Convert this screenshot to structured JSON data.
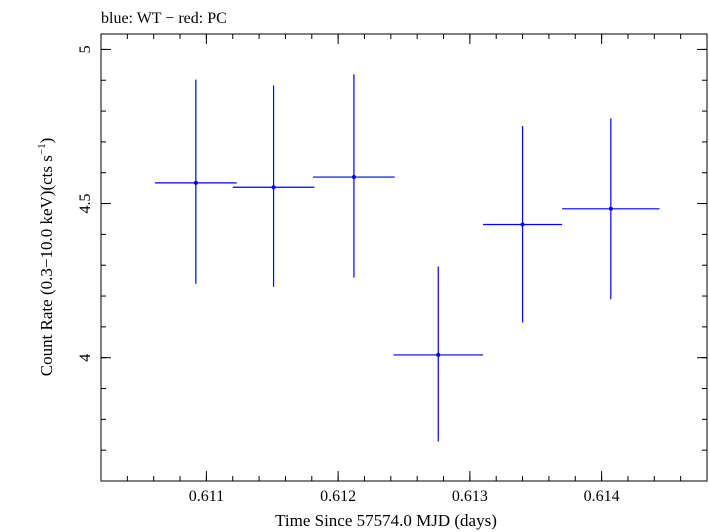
{
  "chart_data": {
    "type": "scatter",
    "title": "blue: WT − red: PC",
    "xlabel": "Time Since 57574.0 MJD (days)",
    "ylabel_main": "Count Rate (0.3−10.0 keV)(cts s",
    "ylabel_sup": "−1",
    "ylabel_close": ")",
    "xlim": [
      0.6102,
      0.6148
    ],
    "ylim": [
      3.6,
      5.05
    ],
    "x_major_ticks": [
      {
        "value": 0.611,
        "label": "0.611"
      },
      {
        "value": 0.612,
        "label": "0.612"
      },
      {
        "value": 0.613,
        "label": "0.613"
      },
      {
        "value": 0.614,
        "label": "0.614"
      }
    ],
    "y_major_ticks": [
      {
        "value": 4.0,
        "label": "4"
      },
      {
        "value": 4.5,
        "label": "4.5"
      },
      {
        "value": 5.0,
        "label": "5"
      }
    ],
    "x_minor_step": 0.0002,
    "y_minor_step": 0.1,
    "series": [
      {
        "color": "#0000ee",
        "points": [
          {
            "x": 0.61092,
            "xerr_lo": 0.00031,
            "xerr_hi": 0.00031,
            "y": 4.567,
            "yerr_lo": 0.327,
            "yerr_hi": 0.335
          },
          {
            "x": 0.61151,
            "xerr_lo": 0.00031,
            "xerr_hi": 0.00031,
            "y": 4.553,
            "yerr_lo": 0.323,
            "yerr_hi": 0.33
          },
          {
            "x": 0.61212,
            "xerr_lo": 0.00031,
            "xerr_hi": 0.00031,
            "y": 4.586,
            "yerr_lo": 0.326,
            "yerr_hi": 0.333
          },
          {
            "x": 0.61276,
            "xerr_lo": 0.00034,
            "xerr_hi": 0.00034,
            "y": 4.009,
            "yerr_lo": 0.281,
            "yerr_hi": 0.287
          },
          {
            "x": 0.6134,
            "xerr_lo": 0.0003,
            "xerr_hi": 0.0003,
            "y": 4.432,
            "yerr_lo": 0.318,
            "yerr_hi": 0.319
          },
          {
            "x": 0.61407,
            "xerr_lo": 0.00037,
            "xerr_hi": 0.00037,
            "y": 4.483,
            "yerr_lo": 0.293,
            "yerr_hi": 0.293
          }
        ]
      }
    ]
  }
}
